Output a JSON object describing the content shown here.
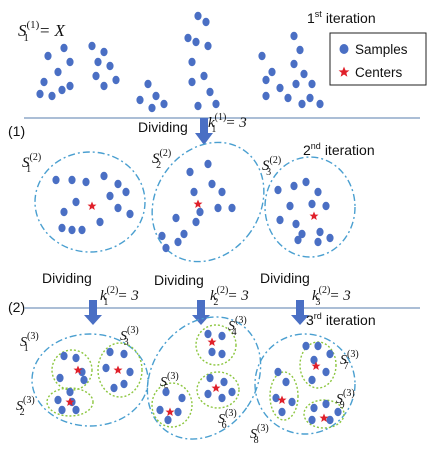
{
  "legend": {
    "samples_label": "Samples",
    "centers_label": "Centers",
    "sample_color": "#4a6fc4",
    "center_color": "#e0202a"
  },
  "colors": {
    "divider_line": "#8fa8c8",
    "cluster_outline": "#4a9fd0",
    "subcluster_outline": "#8cc63f",
    "arrow": "#4a6fc4"
  },
  "iteration1": {
    "set_label": {
      "sym": "S",
      "sub": "1",
      "sup": "(1)",
      "rhs": "= X"
    },
    "iteration": {
      "num": "1",
      "ord": "st",
      "word": "iteration"
    }
  },
  "step1": {
    "marker": "(1)",
    "dividing": "Dividing",
    "k": {
      "sym": "k",
      "sub": "1",
      "sup": "(1)",
      "rhs": "= 3"
    }
  },
  "iteration2": {
    "iteration": {
      "num": "2",
      "ord": "nd",
      "word": "iteration"
    },
    "clusters": [
      {
        "sym": "S",
        "sub": "1",
        "sup": "(2)"
      },
      {
        "sym": "S",
        "sub": "2",
        "sup": "(2)"
      },
      {
        "sym": "S",
        "sub": "3",
        "sup": "(2)"
      }
    ]
  },
  "step2": {
    "marker": "(2)",
    "dividing": [
      "Dividing",
      "Dividing",
      "Dividing"
    ],
    "k": [
      {
        "sym": "k",
        "sub": "1",
        "sup": "(2)",
        "rhs": "= 3"
      },
      {
        "sym": "k",
        "sub": "2",
        "sup": "(2)",
        "rhs": "= 3"
      },
      {
        "sym": "k",
        "sub": "3",
        "sup": "(2)",
        "rhs": "= 3"
      }
    ]
  },
  "iteration3": {
    "iteration": {
      "num": "3",
      "ord": "rd",
      "word": "iteration"
    },
    "subclusters": [
      {
        "sym": "S",
        "sub": "1",
        "sup": "(3)"
      },
      {
        "sym": "S",
        "sub": "2",
        "sup": "(3)"
      },
      {
        "sym": "S",
        "sub": "3",
        "sup": "(3)"
      },
      {
        "sym": "S",
        "sub": "4",
        "sup": "(3)"
      },
      {
        "sym": "S",
        "sub": "5",
        "sup": "(3)"
      },
      {
        "sym": "S",
        "sub": "6",
        "sup": "(3)"
      },
      {
        "sym": "S",
        "sub": "7",
        "sup": "(3)"
      },
      {
        "sym": "S",
        "sub": "8",
        "sup": "(3)"
      },
      {
        "sym": "S",
        "sub": "9",
        "sup": "(3)"
      }
    ]
  }
}
